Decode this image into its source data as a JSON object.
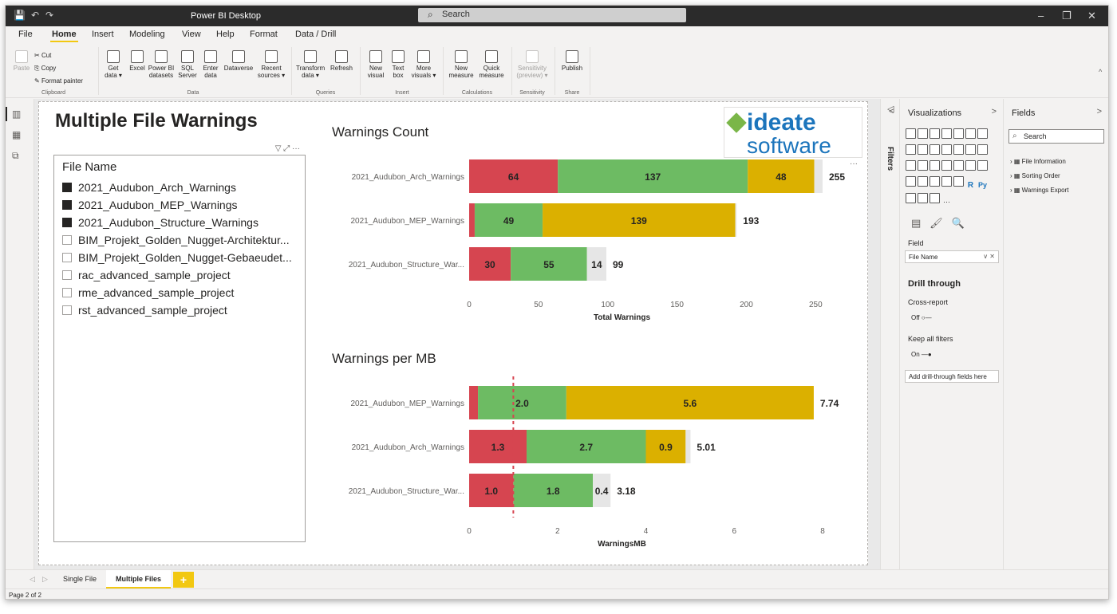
{
  "titlebar": {
    "app_title": "Power BI Desktop",
    "search_placeholder": "Search",
    "minimize": "–",
    "restore": "❐",
    "close": "✕",
    "qa_save": "💾",
    "qa_undo": "↶",
    "qa_redo": "↷"
  },
  "menu": {
    "tabs": [
      "File",
      "Home",
      "Insert",
      "Modeling",
      "View",
      "Help",
      "Format",
      "Data / Drill"
    ]
  },
  "ribbon": {
    "clipboard": {
      "paste": "Paste",
      "cut": "Cut",
      "copy": "Copy",
      "format_painter": "Format painter",
      "label": "Clipboard"
    },
    "data": {
      "buttons": [
        "Get data ▾",
        "Excel",
        "Power BI datasets",
        "SQL Server",
        "Enter data",
        "Dataverse",
        "Recent sources ▾"
      ],
      "label": "Data"
    },
    "queries": {
      "buttons": [
        "Transform data ▾",
        "Refresh"
      ],
      "label": "Queries"
    },
    "insert": {
      "buttons": [
        "New visual",
        "Text box",
        "More visuals ▾"
      ],
      "label": "Insert"
    },
    "calculations": {
      "buttons": [
        "New measure",
        "Quick measure"
      ],
      "label": "Calculations"
    },
    "sensitivity": {
      "buttons": [
        "Sensitivity (preview) ▾"
      ],
      "label": "Sensitivity"
    },
    "share": {
      "buttons": [
        "Publish"
      ],
      "label": "Share"
    },
    "collapse": "^"
  },
  "report": {
    "title": "Multiple File Warnings",
    "logo_line1": "ideate",
    "logo_line2": "software",
    "more_options": "···"
  },
  "slicer": {
    "heading": "File Name",
    "items": [
      {
        "label": "2021_Audubon_Arch_Warnings",
        "checked": true
      },
      {
        "label": "2021_Audubon_MEP_Warnings",
        "checked": true
      },
      {
        "label": "2021_Audubon_Structure_Warnings",
        "checked": true
      },
      {
        "label": "BIM_Projekt_Golden_Nugget-Architektur...",
        "checked": false
      },
      {
        "label": "BIM_Projekt_Golden_Nugget-Gebaeudet...",
        "checked": false
      },
      {
        "label": "rac_advanced_sample_project",
        "checked": false
      },
      {
        "label": "rme_advanced_sample_project",
        "checked": false
      },
      {
        "label": "rst_advanced_sample_project",
        "checked": false
      }
    ],
    "header_icons": "▽ ⤢ ···"
  },
  "chart_data": [
    {
      "type": "bar",
      "title": "Warnings Count",
      "xlabel": "Total Warnings",
      "categories": [
        "2021_Audubon_Arch_Warnings",
        "2021_Audubon_MEP_Warnings",
        "2021_Audubon_Structure_War..."
      ],
      "series": [
        {
          "color": "#d64550",
          "values": [
            64,
            4,
            30
          ],
          "labels": [
            "64",
            "",
            "30"
          ]
        },
        {
          "color": "#6dbb63",
          "values": [
            137,
            49,
            55
          ],
          "labels": [
            "137",
            "49",
            "55"
          ]
        },
        {
          "color": "#dbb000",
          "values": [
            48,
            139,
            0
          ],
          "labels": [
            "48",
            "139",
            ""
          ]
        },
        {
          "color": "#e6e6e6",
          "values": [
            6,
            1,
            14
          ],
          "labels": [
            "",
            "",
            "14"
          ]
        }
      ],
      "totals": [
        "255",
        "193",
        "99"
      ],
      "xticks": [
        0,
        50,
        100,
        150,
        200,
        250
      ],
      "xlim": [
        0,
        255
      ],
      "reference_line": null
    },
    {
      "type": "bar",
      "title": "Warnings per MB",
      "xlabel": "WarningsMB",
      "categories": [
        "2021_Audubon_MEP_Warnings",
        "2021_Audubon_Arch_Warnings",
        "2021_Audubon_Structure_War..."
      ],
      "series": [
        {
          "color": "#d64550",
          "values": [
            0.2,
            1.3,
            1.0
          ],
          "labels": [
            "",
            "1.3",
            "1.0"
          ]
        },
        {
          "color": "#6dbb63",
          "values": [
            2.0,
            2.7,
            1.8
          ],
          "labels": [
            "2.0",
            "2.7",
            "1.8"
          ]
        },
        {
          "color": "#dbb000",
          "values": [
            5.6,
            0.9,
            0
          ],
          "labels": [
            "5.6",
            "0.9",
            ""
          ]
        },
        {
          "color": "#e6e6e6",
          "values": [
            0,
            0.11,
            0.4
          ],
          "labels": [
            "",
            "",
            "0.4"
          ]
        }
      ],
      "totals": [
        "7.74",
        "5.01",
        "3.18"
      ],
      "xticks": [
        0,
        2,
        4,
        6,
        8
      ],
      "xlim": [
        0,
        8
      ],
      "reference_line": 1.0
    }
  ],
  "filters_pane": {
    "label": "Filters",
    "arrow": "◁"
  },
  "viz_pane": {
    "title": "Visualizations",
    "chevron_left": "<",
    "chevron_right": ">",
    "field_label": "Field",
    "field_value": "File Name",
    "field_controls": "∨ ✕",
    "drill_title": "Drill through",
    "cross_report": "Cross-report",
    "cross_report_state": "Off",
    "keep_filters": "Keep all filters",
    "keep_filters_state": "On",
    "add_drill": "Add drill-through fields here",
    "icon_r": "R",
    "icon_py": "Py",
    "more": "···"
  },
  "fields_pane": {
    "title": "Fields",
    "chevron": ">",
    "search_placeholder": "Search",
    "tables": [
      "File Information",
      "Sorting Order",
      "Warnings Export"
    ]
  },
  "page_tabs": {
    "nav_prev": "◁",
    "nav_next": "▷",
    "tabs": [
      "Single File",
      "Multiple Files"
    ],
    "active": "Multiple Files",
    "add": "+"
  },
  "status": {
    "page": "Page 2 of 2"
  }
}
